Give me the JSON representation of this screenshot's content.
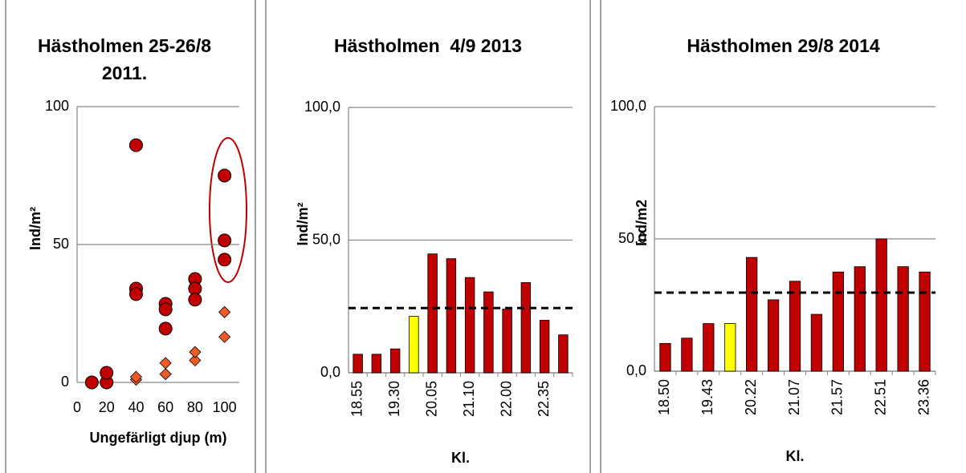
{
  "chart_data": [
    {
      "type": "scatter",
      "title": "Hästholmen 25-26/8 2011.",
      "x_label": "Ungefärligt djup (m)",
      "y_label": "Ind/m²",
      "xlim": [
        0,
        110
      ],
      "xticks": [
        0,
        20,
        40,
        60,
        80,
        100
      ],
      "ylim": [
        0,
        100
      ],
      "yticks": [
        0,
        50,
        100
      ],
      "grid": true,
      "series": [
        {
          "marker": "circle",
          "color": "#c00000",
          "x": [
            10,
            20,
            20,
            40,
            40,
            40,
            60,
            60,
            60,
            80,
            80,
            80,
            100,
            100,
            100
          ],
          "values": [
            0,
            0,
            3.5,
            86,
            34,
            32,
            28.5,
            26.5,
            19.5,
            37.5,
            34,
            30,
            75,
            51.5,
            44.5
          ]
        },
        {
          "marker": "diamond",
          "color": "#f25a26",
          "x": [
            40,
            40,
            60,
            60,
            80,
            80,
            100,
            100
          ],
          "values": [
            1,
            2,
            3,
            7,
            8,
            11,
            16.5,
            25.5
          ]
        }
      ]
    },
    {
      "type": "bar",
      "title": "Hästholmen  4/9 2013",
      "x_label": "Kl.",
      "y_label": "Ind/m²",
      "ylim": [
        0,
        100
      ],
      "yticks": [
        {
          "value": 0,
          "label": "0,0"
        },
        {
          "value": 50,
          "label": "50,0"
        },
        {
          "value": 100,
          "label": "100,0"
        }
      ],
      "grid": true,
      "categories": [
        "18.55",
        null,
        "19.30",
        null,
        "20.05",
        null,
        "21.10",
        null,
        "22.00",
        null,
        "22.35",
        null
      ],
      "values": [
        7,
        7,
        9,
        21.3,
        44.8,
        43,
        35.9,
        30.5,
        24,
        34,
        19.8,
        14.3
      ],
      "colors": [
        "#c00000",
        "#c00000",
        "#c00000",
        "#ffff00",
        "#c00000",
        "#c00000",
        "#c00000",
        "#c00000",
        "#c00000",
        "#c00000",
        "#c00000",
        "#c00000"
      ],
      "reference_line": 24.4
    },
    {
      "type": "bar",
      "title": "Hästholmen 29/8 2014",
      "x_label": "Kl.",
      "y_label": "Ind/m2",
      "ylim": [
        0,
        100
      ],
      "yticks": [
        {
          "value": 0,
          "label": "0,0"
        },
        {
          "value": 50,
          "label": "50,0"
        },
        {
          "value": 100,
          "label": "100,0"
        }
      ],
      "grid": true,
      "categories": [
        "18.50",
        null,
        "19.43",
        null,
        "20.22",
        null,
        "21.07",
        null,
        "21.57",
        null,
        "22.51",
        null,
        "23.36"
      ],
      "values": [
        10.5,
        12.5,
        18,
        18,
        43,
        27,
        34,
        21.5,
        37.5,
        39.5,
        50,
        39.5,
        37.5
      ],
      "colors": [
        "#c00000",
        "#c00000",
        "#c00000",
        "#ffff00",
        "#c00000",
        "#c00000",
        "#c00000",
        "#c00000",
        "#c00000",
        "#c00000",
        "#c00000",
        "#c00000",
        "#c00000"
      ],
      "reference_line": 29.7
    }
  ]
}
